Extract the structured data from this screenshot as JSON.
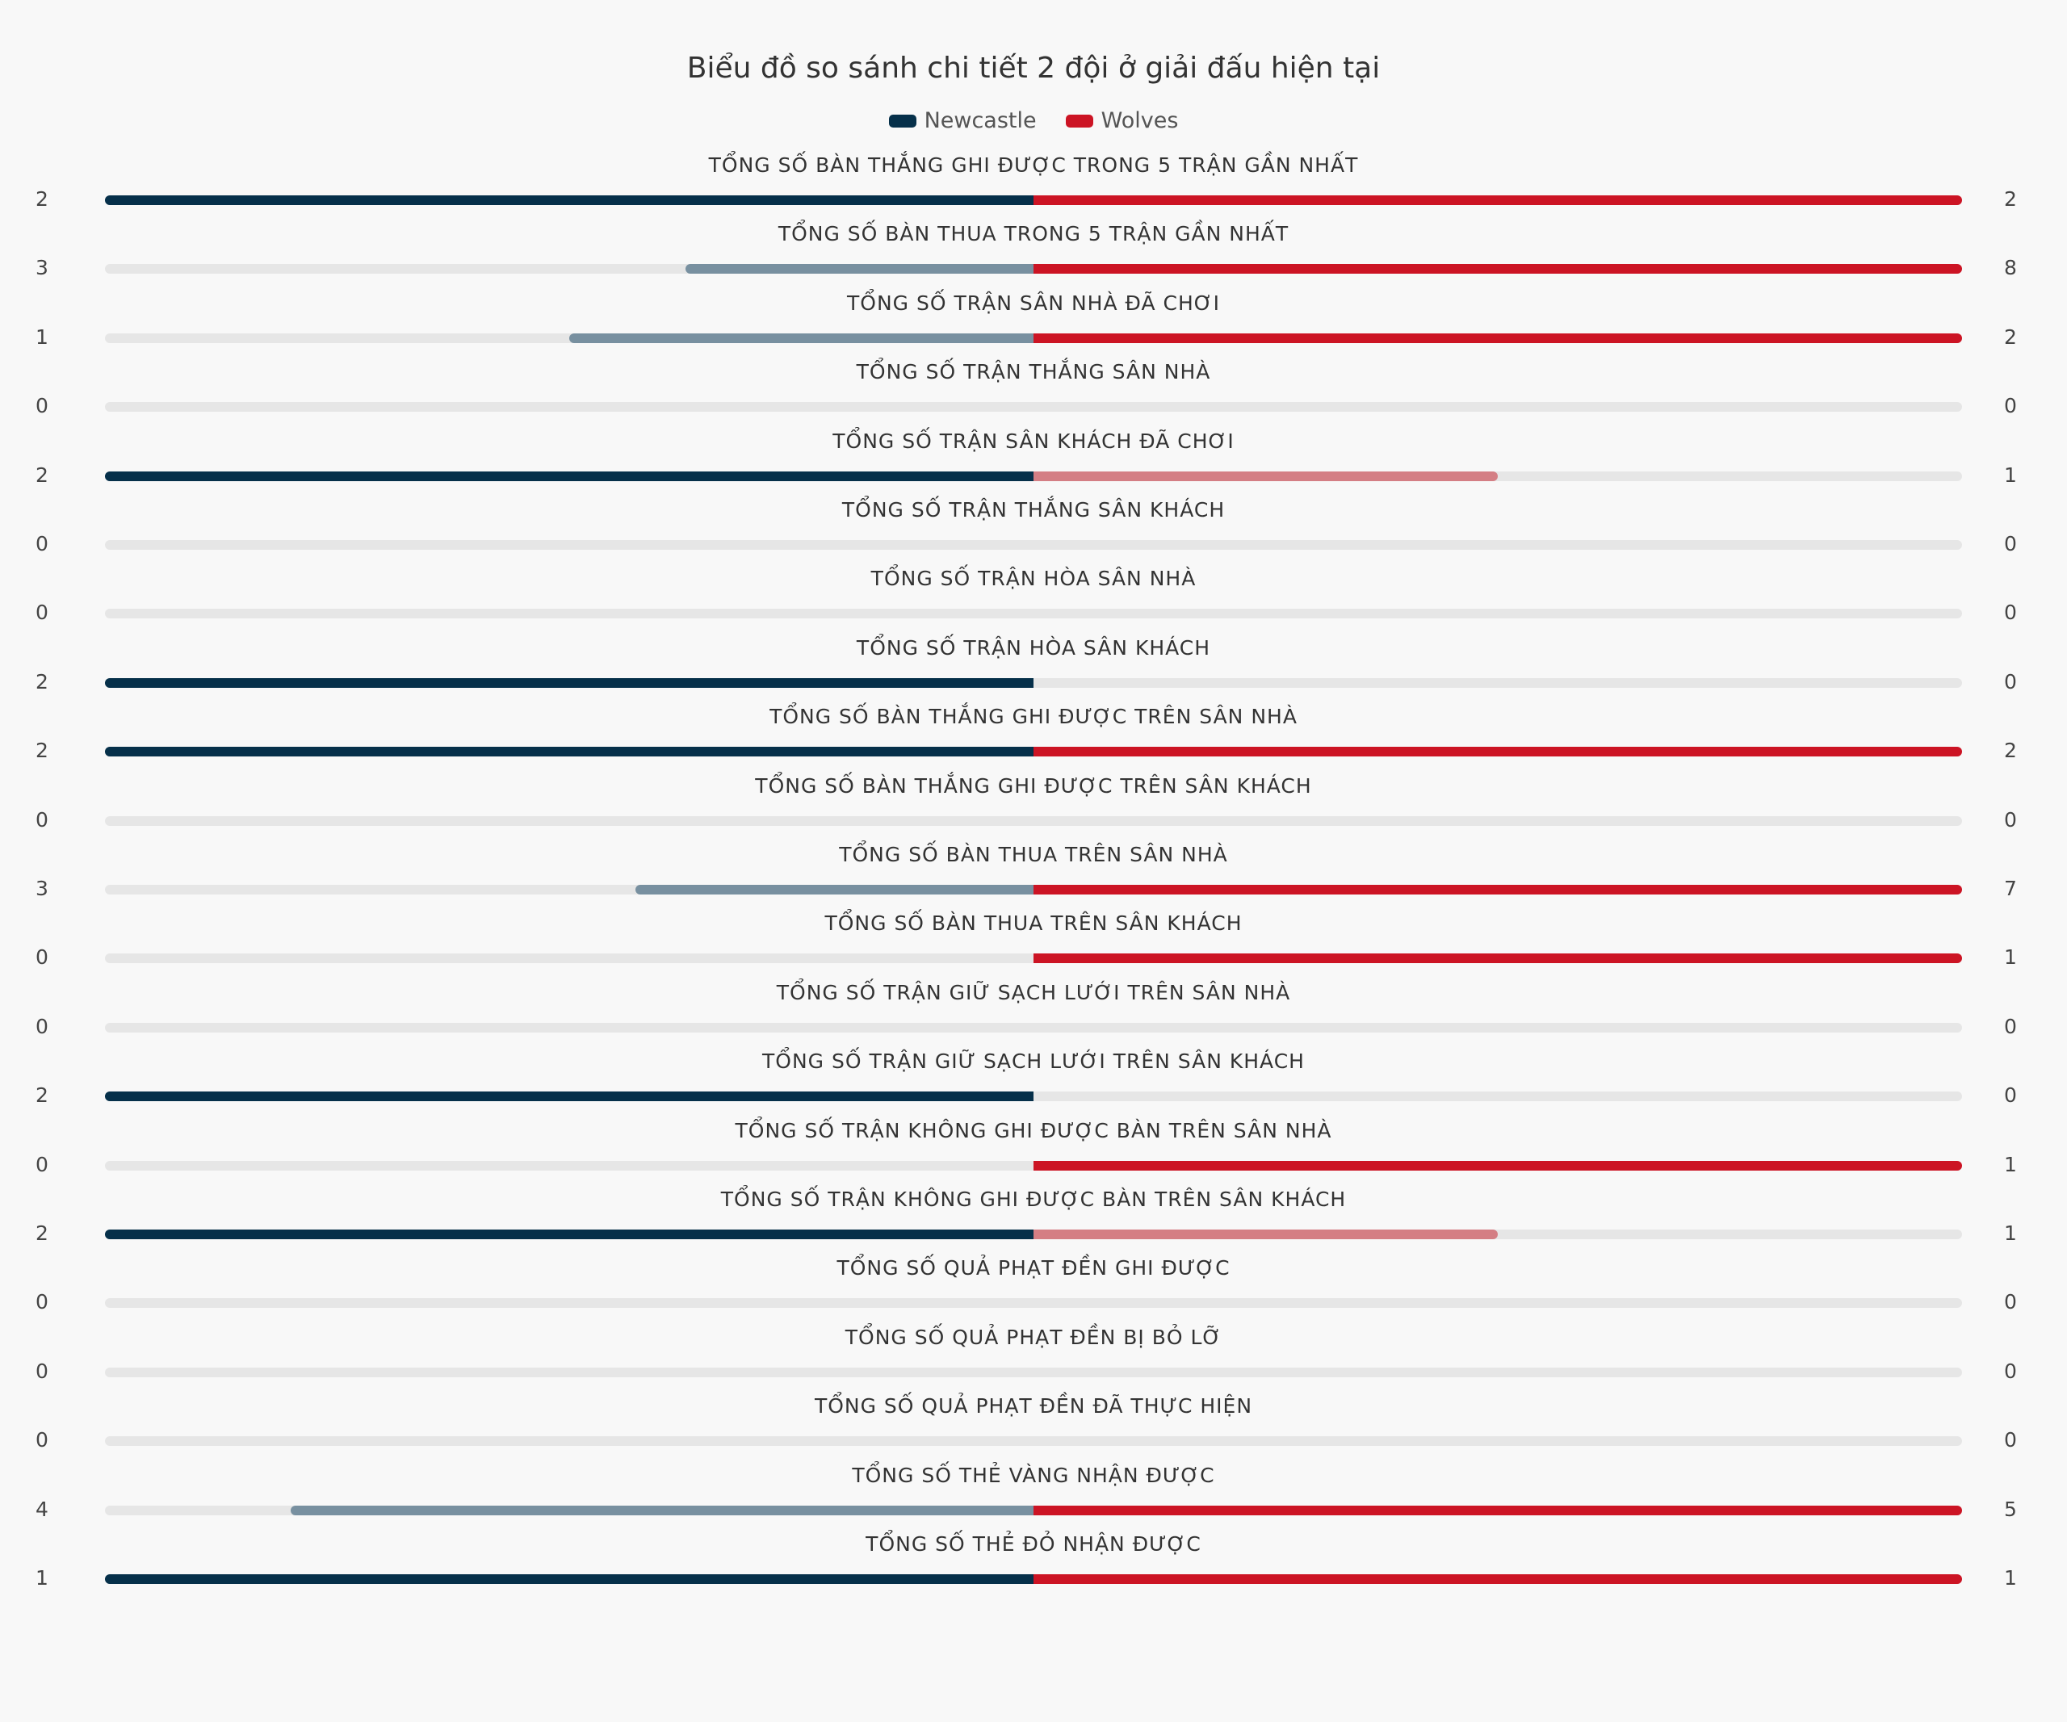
{
  "colors": {
    "team_a": "#06304a",
    "team_a_light": "#7890a0",
    "team_b": "#cc1424",
    "team_b_light": "#d47e84",
    "track": "#e6e6e6"
  },
  "chart_data": {
    "type": "bar",
    "orientation": "diverging-horizontal",
    "title": "Biểu đồ so sánh chi tiết 2 đội ở giải đấu hiện tại",
    "legend": {
      "position": "top-center",
      "entries": [
        "Newcastle",
        "Wolves"
      ]
    },
    "series": [
      {
        "name": "Newcastle",
        "values": [
          2,
          3,
          1,
          0,
          2,
          0,
          0,
          2,
          2,
          0,
          3,
          0,
          0,
          2,
          0,
          2,
          0,
          0,
          0,
          4,
          1
        ]
      },
      {
        "name": "Wolves",
        "values": [
          2,
          8,
          2,
          0,
          1,
          0,
          0,
          0,
          2,
          0,
          7,
          1,
          0,
          0,
          1,
          1,
          0,
          0,
          0,
          5,
          1
        ]
      }
    ],
    "categories": [
      "TỔNG SỐ BÀN THẮNG GHI ĐƯỢC TRONG 5 TRẬN GẦN NHẤT",
      "TỔNG SỐ BÀN THUA TRONG 5 TRẬN GẦN NHẤT",
      "TỔNG SỐ TRẬN SÂN NHÀ ĐÃ CHƠI",
      "TỔNG SỐ TRẬN THẮNG SÂN NHÀ",
      "TỔNG SỐ TRẬN SÂN KHÁCH ĐÃ CHƠI",
      "TỔNG SỐ TRẬN THẮNG SÂN KHÁCH",
      "TỔNG SỐ TRẬN HÒA SÂN NHÀ",
      "TỔNG SỐ TRẬN HÒA SÂN KHÁCH",
      "TỔNG SỐ BÀN THẮNG GHI ĐƯỢC TRÊN SÂN NHÀ",
      "TỔNG SỐ BÀN THẮNG GHI ĐƯỢC TRÊN SÂN KHÁCH",
      "TỔNG SỐ BÀN THUA TRÊN SÂN NHÀ",
      "TỔNG SỐ BÀN THUA TRÊN SÂN KHÁCH",
      "TỔNG SỐ TRẬN GIỮ SẠCH LƯỚI TRÊN SÂN NHÀ",
      "TỔNG SỐ TRẬN GIỮ SẠCH LƯỚI TRÊN SÂN KHÁCH",
      "TỔNG SỐ TRẬN KHÔNG GHI ĐƯỢC BÀN TRÊN SÂN NHÀ",
      "TỔNG SỐ TRẬN KHÔNG GHI ĐƯỢC BÀN TRÊN SÂN KHÁCH",
      "TỔNG SỐ QUẢ PHẠT ĐỀN GHI ĐƯỢC",
      "TỔNG SỐ QUẢ PHẠT ĐỀN BỊ BỎ LỠ",
      "TỔNG SỐ QUẢ PHẠT ĐỀN ĐÃ THỰC HIỆN",
      "TỔNG SỐ THẺ VÀNG NHẬN ĐƯỢC",
      "TỔNG SỐ THẺ ĐỎ NHẬN ĐƯỢC"
    ]
  }
}
